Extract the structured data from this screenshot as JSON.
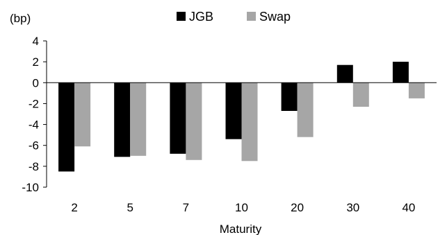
{
  "chart_data": {
    "type": "bar",
    "unit_label": "(bp)",
    "xlabel": "Maturity",
    "ylabel": "",
    "categories": [
      "2",
      "5",
      "7",
      "10",
      "20",
      "30",
      "40"
    ],
    "series": [
      {
        "name": "JGB",
        "color": "#000000",
        "values": [
          -8.5,
          -7.1,
          -6.8,
          -5.4,
          -2.7,
          1.7,
          2.0
        ]
      },
      {
        "name": "Swap",
        "color": "#a6a6a6",
        "values": [
          -6.1,
          -7.0,
          -7.4,
          -7.5,
          -5.2,
          -2.3,
          -1.5
        ]
      }
    ],
    "ylim": [
      -10,
      4
    ],
    "yticks": [
      4,
      2,
      0,
      -2,
      -4,
      -6,
      -8,
      -10
    ],
    "grid": false,
    "legend_position": "top"
  }
}
